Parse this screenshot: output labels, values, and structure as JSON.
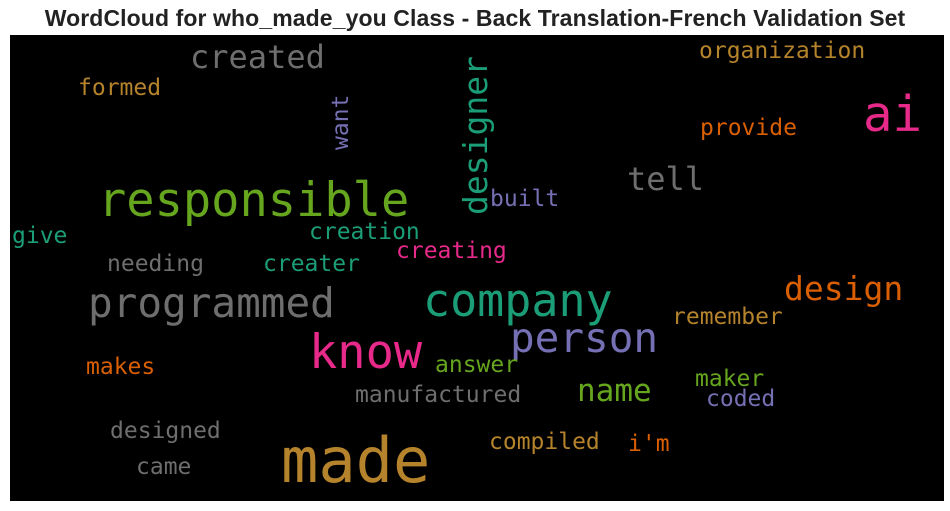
{
  "title": "WordCloud for who_made_you Class - Back Translation-French Validation Set",
  "words": [
    {
      "text": "made",
      "color": "#b5832b"
    },
    {
      "text": "responsible",
      "color": "#66a61e"
    },
    {
      "text": "know",
      "color": "#e7298a"
    },
    {
      "text": "company",
      "color": "#1b9e77"
    },
    {
      "text": "ai",
      "color": "#e7298a"
    },
    {
      "text": "programmed",
      "color": "#6e6e6e"
    },
    {
      "text": "person",
      "color": "#7570b3"
    },
    {
      "text": "designer",
      "color": "#1b9e77"
    },
    {
      "text": "created",
      "color": "#6e6e6e"
    },
    {
      "text": "design",
      "color": "#d95f02"
    },
    {
      "text": "tell",
      "color": "#6e6e6e"
    },
    {
      "text": "name",
      "color": "#66a61e"
    },
    {
      "text": "organization",
      "color": "#b5832b"
    },
    {
      "text": "provide",
      "color": "#d95f02"
    },
    {
      "text": "want",
      "color": "#7570b3"
    },
    {
      "text": "formed",
      "color": "#b5832b"
    },
    {
      "text": "built",
      "color": "#7570b3"
    },
    {
      "text": "creation",
      "color": "#1b9e77"
    },
    {
      "text": "creating",
      "color": "#e7298a"
    },
    {
      "text": "give",
      "color": "#1b9e77"
    },
    {
      "text": "needing",
      "color": "#6e6e6e"
    },
    {
      "text": "creater",
      "color": "#1b9e77"
    },
    {
      "text": "remember",
      "color": "#b5832b"
    },
    {
      "text": "answer",
      "color": "#66a61e"
    },
    {
      "text": "makes",
      "color": "#d95f02"
    },
    {
      "text": "maker",
      "color": "#66a61e"
    },
    {
      "text": "manufactured",
      "color": "#6e6e6e"
    },
    {
      "text": "coded",
      "color": "#7570b3"
    },
    {
      "text": "designed",
      "color": "#6e6e6e"
    },
    {
      "text": "compiled",
      "color": "#b5832b"
    },
    {
      "text": "i'm",
      "color": "#d95f02"
    },
    {
      "text": "came",
      "color": "#6e6e6e"
    }
  ]
}
